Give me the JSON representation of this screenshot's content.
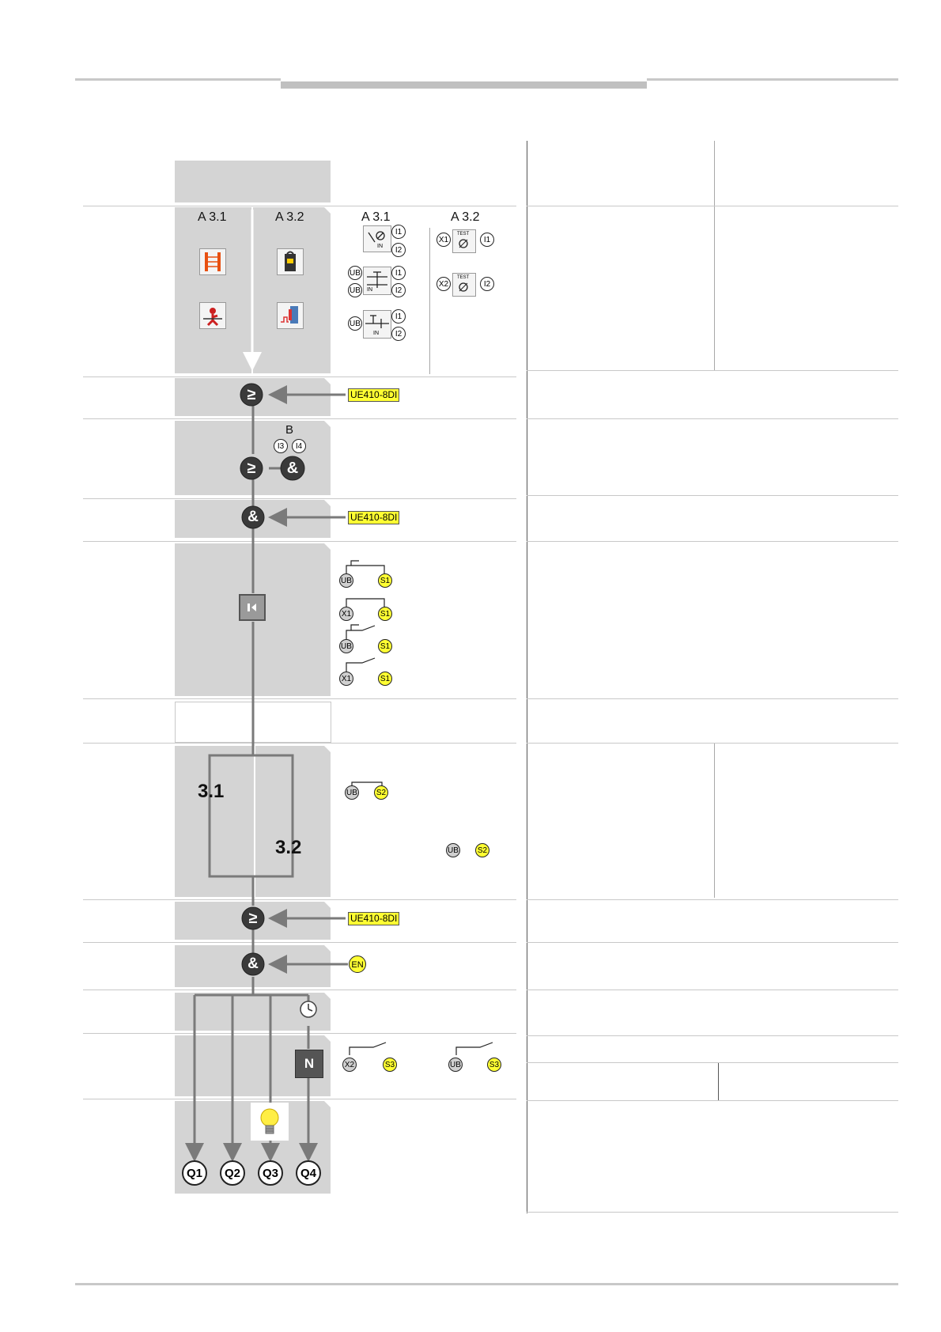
{
  "inputs_header": {
    "a31": "A 3.1",
    "a32": "A 3.2"
  },
  "wiring_header": {
    "a31": "A 3.1",
    "a32": "A 3.2"
  },
  "terminals": {
    "i1": "I1",
    "i2": "I2",
    "ub": "UB",
    "x1": "X1",
    "x2": "X2",
    "i3": "I3",
    "i4": "I4",
    "s1": "S1",
    "s2": "S2",
    "s3": "S3",
    "en": "EN",
    "in": "IN",
    "test": "TEST"
  },
  "modules": {
    "ue1": "UE410-8DI",
    "ue2": "UE410-8DI",
    "ue3": "UE410-8DI"
  },
  "block_b": "B",
  "gates": {
    "ge": "≥",
    "and": "&"
  },
  "paths": {
    "p31": "3.1",
    "p32": "3.2"
  },
  "n_block": "N",
  "outputs": [
    "Q1",
    "Q2",
    "Q3",
    "Q4"
  ],
  "colors": {
    "band": "#d4d4d4",
    "highlight": "#ffff33",
    "gate": "#3a3a3a",
    "line": "#7a7a7a"
  }
}
